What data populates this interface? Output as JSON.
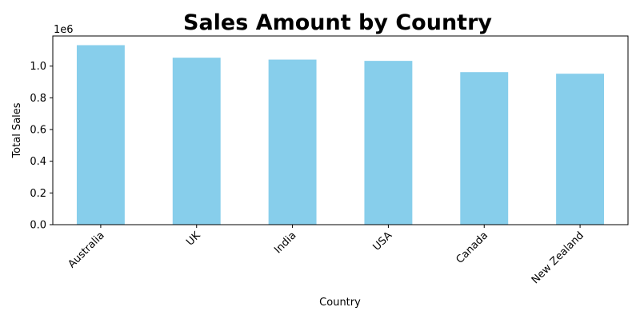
{
  "chart_data": {
    "type": "bar",
    "title": "Sales Amount by Country",
    "xlabel": "Country",
    "ylabel": "Total Sales",
    "y_offset_label": "1e6",
    "categories": [
      "Australia",
      "UK",
      "India",
      "USA",
      "Canada",
      "New Zealand"
    ],
    "values": [
      1132000,
      1053000,
      1041000,
      1033000,
      962000,
      952000
    ],
    "ylim": [
      0,
      1190000
    ],
    "y_ticks": [
      0,
      200000,
      400000,
      600000,
      800000,
      1000000
    ],
    "y_tick_labels": [
      "0.0",
      "0.2",
      "0.4",
      "0.6",
      "0.8",
      "1.0"
    ],
    "grid": false,
    "legend": "none",
    "bar_color": "#87ceeb",
    "x_tick_rotation_deg": 45
  }
}
